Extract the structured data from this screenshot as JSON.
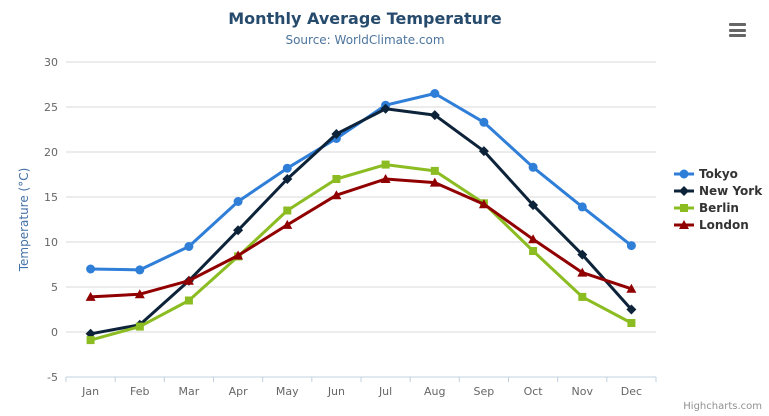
{
  "chart_data": {
    "type": "line",
    "title": "Monthly Average Temperature",
    "subtitle": "Source: WorldClimate.com",
    "xlabel": "",
    "ylabel": "Temperature (°C)",
    "categories": [
      "Jan",
      "Feb",
      "Mar",
      "Apr",
      "May",
      "Jun",
      "Jul",
      "Aug",
      "Sep",
      "Oct",
      "Nov",
      "Dec"
    ],
    "ylim": [
      -5,
      30
    ],
    "yticks": [
      -5,
      0,
      5,
      10,
      15,
      20,
      25,
      30
    ],
    "grid": true,
    "legend_position": "right",
    "series": [
      {
        "name": "Tokyo",
        "color": "#2f7ed8",
        "marker": "circle",
        "values": [
          7.0,
          6.9,
          9.5,
          14.5,
          18.2,
          21.5,
          25.2,
          26.5,
          23.3,
          18.3,
          13.9,
          9.6
        ]
      },
      {
        "name": "New York",
        "color": "#0d233a",
        "marker": "diamond",
        "values": [
          -0.2,
          0.8,
          5.7,
          11.3,
          17.0,
          22.0,
          24.8,
          24.1,
          20.1,
          14.1,
          8.6,
          2.5
        ]
      },
      {
        "name": "Berlin",
        "color": "#8bbc21",
        "marker": "square",
        "values": [
          -0.9,
          0.6,
          3.5,
          8.4,
          13.5,
          17.0,
          18.6,
          17.9,
          14.3,
          9.0,
          3.9,
          1.0
        ]
      },
      {
        "name": "London",
        "color": "#910000",
        "marker": "triangle",
        "values": [
          3.9,
          4.2,
          5.7,
          8.5,
          11.9,
          15.2,
          17.0,
          16.6,
          14.2,
          10.3,
          6.6,
          4.8
        ]
      }
    ],
    "colors": {
      "title": "#274b6d",
      "subtitle": "#4d759e",
      "axis_title": "#4572a7",
      "axis_labels": "#666666",
      "gridline": "#d8d8d8",
      "axis_line": "#c0d0e0"
    }
  },
  "credits": "Highcharts.com"
}
